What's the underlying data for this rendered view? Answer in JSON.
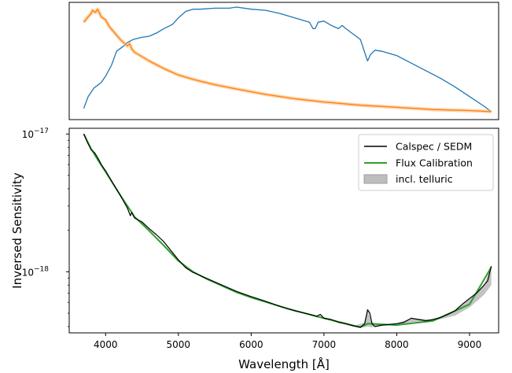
{
  "chart_data": [
    {
      "type": "line",
      "panel": "top",
      "xlim": [
        3500,
        9400
      ],
      "yaxis": "unlabeled (normalized)",
      "series": [
        {
          "color": "#1f77b4",
          "points": [
            [
              3700,
              0.06
            ],
            [
              3760,
              0.17
            ],
            [
              3840,
              0.25
            ],
            [
              3940,
              0.3
            ],
            [
              4000,
              0.36
            ],
            [
              4080,
              0.46
            ],
            [
              4150,
              0.59
            ],
            [
              4250,
              0.64
            ],
            [
              4300,
              0.67
            ],
            [
              4380,
              0.7
            ],
            [
              4500,
              0.72
            ],
            [
              4600,
              0.73
            ],
            [
              4700,
              0.76
            ],
            [
              4800,
              0.8
            ],
            [
              4860,
              0.82
            ],
            [
              4920,
              0.84
            ],
            [
              5000,
              0.9
            ],
            [
              5100,
              0.96
            ],
            [
              5200,
              0.98
            ],
            [
              5300,
              0.98
            ],
            [
              5500,
              0.99
            ],
            [
              5700,
              0.99
            ],
            [
              5800,
              1.0
            ],
            [
              6000,
              0.98
            ],
            [
              6200,
              0.97
            ],
            [
              6400,
              0.94
            ],
            [
              6600,
              0.9
            ],
            [
              6800,
              0.86
            ],
            [
              6850,
              0.8
            ],
            [
              6880,
              0.8
            ],
            [
              6920,
              0.86
            ],
            [
              7000,
              0.87
            ],
            [
              7100,
              0.83
            ],
            [
              7200,
              0.8
            ],
            [
              7250,
              0.83
            ],
            [
              7300,
              0.8
            ],
            [
              7500,
              0.7
            ],
            [
              7560,
              0.58
            ],
            [
              7600,
              0.5
            ],
            [
              7640,
              0.56
            ],
            [
              7700,
              0.6
            ],
            [
              7800,
              0.59
            ],
            [
              8000,
              0.55
            ],
            [
              8200,
              0.48
            ],
            [
              8400,
              0.41
            ],
            [
              8600,
              0.34
            ],
            [
              8800,
              0.26
            ],
            [
              9000,
              0.17
            ],
            [
              9200,
              0.08
            ],
            [
              9300,
              0.03
            ]
          ]
        },
        {
          "color": "#ff7f0e",
          "points": [
            [
              3700,
              0.86
            ],
            [
              3760,
              0.91
            ],
            [
              3800,
              0.94
            ],
            [
              3820,
              0.97
            ],
            [
              3860,
              0.95
            ],
            [
              3890,
              0.98
            ],
            [
              3940,
              0.91
            ],
            [
              4000,
              0.88
            ],
            [
              4050,
              0.82
            ],
            [
              4100,
              0.78
            ],
            [
              4200,
              0.7
            ],
            [
              4300,
              0.64
            ],
            [
              4330,
              0.66
            ],
            [
              4360,
              0.61
            ],
            [
              4400,
              0.58
            ],
            [
              4500,
              0.54
            ],
            [
              4600,
              0.5
            ],
            [
              4800,
              0.43
            ],
            [
              5000,
              0.37
            ],
            [
              5200,
              0.33
            ],
            [
              5500,
              0.28
            ],
            [
              5800,
              0.24
            ],
            [
              6200,
              0.19
            ],
            [
              6600,
              0.15
            ],
            [
              7000,
              0.12
            ],
            [
              7500,
              0.09
            ],
            [
              8000,
              0.07
            ],
            [
              8500,
              0.05
            ],
            [
              9000,
              0.04
            ],
            [
              9300,
              0.03
            ]
          ]
        }
      ]
    },
    {
      "type": "line",
      "panel": "bottom",
      "xlabel": "Wavelength [Å]",
      "ylabel": "Inversed Sensitivity",
      "xlim": [
        3500,
        9400
      ],
      "xticks": [
        4000,
        5000,
        6000,
        7000,
        8000,
        9000
      ],
      "yscale": "log",
      "ylim": [
        3.6e-19,
        1.1e-17
      ],
      "yticks": [
        {
          "value": 1e-17,
          "base": "10",
          "exp": "−17"
        },
        {
          "value": 1e-18,
          "base": "10",
          "exp": "−18"
        }
      ],
      "legend": "top-right",
      "series": [
        {
          "name": "Calspec / SEDM",
          "color": "#000000",
          "points": [
            [
              3700,
              1e-17
            ],
            [
              3750,
              8.7e-18
            ],
            [
              3800,
              7.7e-18
            ],
            [
              3850,
              7.3e-18
            ],
            [
              3900,
              6.6e-18
            ],
            [
              3950,
              5.9e-18
            ],
            [
              4000,
              5.4e-18
            ],
            [
              4100,
              4.4e-18
            ],
            [
              4200,
              3.6e-18
            ],
            [
              4300,
              2.9e-18
            ],
            [
              4340,
              2.55e-18
            ],
            [
              4360,
              2.7e-18
            ],
            [
              4380,
              2.55e-18
            ],
            [
              4400,
              2.45e-18
            ],
            [
              4500,
              2.3e-18
            ],
            [
              4600,
              2.05e-18
            ],
            [
              4700,
              1.85e-18
            ],
            [
              4800,
              1.65e-18
            ],
            [
              4900,
              1.42e-18
            ],
            [
              5000,
              1.22e-18
            ],
            [
              5100,
              1.07e-18
            ],
            [
              5200,
              9.9e-19
            ],
            [
              5400,
              8.9e-19
            ],
            [
              5600,
              8e-19
            ],
            [
              5800,
              7.2e-19
            ],
            [
              6000,
              6.6e-19
            ],
            [
              6200,
              6.1e-19
            ],
            [
              6400,
              5.6e-19
            ],
            [
              6600,
              5.2e-19
            ],
            [
              6800,
              4.9e-19
            ],
            [
              6900,
              4.75e-19
            ],
            [
              6950,
              4.9e-19
            ],
            [
              7000,
              4.6e-19
            ],
            [
              7100,
              4.5e-19
            ],
            [
              7200,
              4.3e-19
            ],
            [
              7300,
              4.2e-19
            ],
            [
              7400,
              4.05e-19
            ],
            [
              7500,
              3.95e-19
            ],
            [
              7560,
              4.2e-19
            ],
            [
              7600,
              5.3e-19
            ],
            [
              7630,
              5e-19
            ],
            [
              7660,
              4.2e-19
            ],
            [
              7700,
              4e-19
            ],
            [
              7800,
              4.1e-19
            ],
            [
              8000,
              4.2e-19
            ],
            [
              8100,
              4.3e-19
            ],
            [
              8200,
              4.6e-19
            ],
            [
              8300,
              4.5e-19
            ],
            [
              8400,
              4.4e-19
            ],
            [
              8500,
              4.5e-19
            ],
            [
              8600,
              4.65e-19
            ],
            [
              8700,
              4.9e-19
            ],
            [
              8800,
              5.2e-19
            ],
            [
              8900,
              5.8e-19
            ],
            [
              9000,
              6.4e-19
            ],
            [
              9100,
              7e-19
            ],
            [
              9200,
              8e-19
            ],
            [
              9250,
              8.6e-19
            ],
            [
              9300,
              1.1e-18
            ]
          ]
        },
        {
          "name": "Flux Calibration",
          "color": "#2ca02c",
          "points": [
            [
              3700,
              1e-17
            ],
            [
              3800,
              7.8e-18
            ],
            [
              3900,
              6.4e-18
            ],
            [
              4000,
              5.3e-18
            ],
            [
              4200,
              3.6e-18
            ],
            [
              4400,
              2.5e-18
            ],
            [
              4600,
              1.98e-18
            ],
            [
              4800,
              1.55e-18
            ],
            [
              5000,
              1.2e-18
            ],
            [
              5200,
              1e-18
            ],
            [
              5400,
              8.8e-19
            ],
            [
              5600,
              7.9e-19
            ],
            [
              5800,
              7.1e-19
            ],
            [
              6000,
              6.5e-19
            ],
            [
              6500,
              5.4e-19
            ],
            [
              7000,
              4.6e-19
            ],
            [
              7500,
              3.95e-19
            ],
            [
              7600,
              4.2e-19
            ],
            [
              8000,
              4.1e-19
            ],
            [
              8500,
              4.4e-19
            ],
            [
              9000,
              5.8e-19
            ],
            [
              9300,
              1.08e-18
            ]
          ]
        },
        {
          "name": "incl. telluric",
          "color": "#bdbdbd",
          "type": "area",
          "upper": [
            [
              6800,
              4.95e-19
            ],
            [
              6900,
              4.8e-19
            ],
            [
              7000,
              4.6e-19
            ],
            [
              7200,
              4.3e-19
            ],
            [
              7400,
              4.05e-19
            ],
            [
              7550,
              4.25e-19
            ],
            [
              7600,
              5.3e-19
            ],
            [
              7650,
              4.3e-19
            ],
            [
              7800,
              4.1e-19
            ],
            [
              8000,
              4.2e-19
            ],
            [
              8200,
              4.6e-19
            ],
            [
              8500,
              4.5e-19
            ],
            [
              8800,
              5.2e-19
            ],
            [
              9000,
              6.4e-19
            ],
            [
              9200,
              8e-19
            ],
            [
              9300,
              1.1e-18
            ]
          ],
          "lower": [
            [
              6800,
              4.9e-19
            ],
            [
              6900,
              4.65e-19
            ],
            [
              7000,
              4.55e-19
            ],
            [
              7200,
              4.25e-19
            ],
            [
              7400,
              4e-19
            ],
            [
              7550,
              3.95e-19
            ],
            [
              7600,
              4e-19
            ],
            [
              7650,
              3.95e-19
            ],
            [
              7800,
              4.05e-19
            ],
            [
              8000,
              4.1e-19
            ],
            [
              8200,
              4.3e-19
            ],
            [
              8500,
              4.4e-19
            ],
            [
              8800,
              4.8e-19
            ],
            [
              9000,
              5.5e-19
            ],
            [
              9200,
              6.8e-19
            ],
            [
              9300,
              8e-19
            ]
          ]
        }
      ]
    }
  ]
}
